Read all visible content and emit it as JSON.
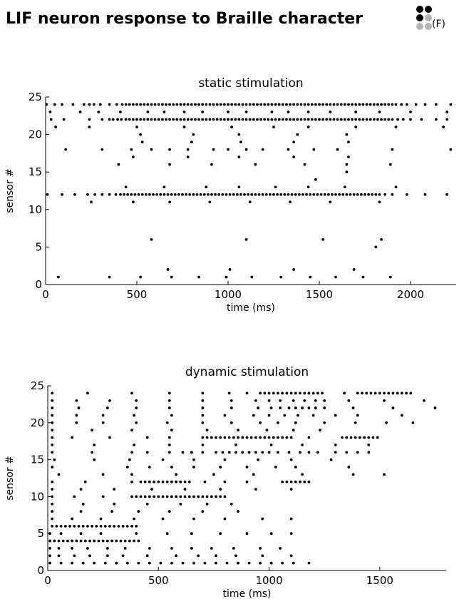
{
  "page_title": "LIF neuron response to Braille character",
  "braille_letter": "(F)",
  "braille_cell": {
    "active_color": "#000000",
    "inactive_color": "#b3b3b3",
    "active_dots": [
      1,
      2,
      4
    ]
  },
  "chart_data": [
    {
      "type": "scatter",
      "title": "static stimulation",
      "xlabel": "time (ms)",
      "ylabel": "sensor #",
      "xlim": [
        0,
        2250
      ],
      "ylim": [
        0,
        25
      ],
      "xticks": [
        0,
        500,
        1000,
        1500,
        2000
      ],
      "yticks": [
        0,
        5,
        10,
        15,
        20,
        25
      ],
      "grid": false,
      "marker_color": "#000000",
      "rows": [
        {
          "y": 24,
          "x": [
            5,
            50,
            90,
            150,
            210,
            240,
            265,
            300,
            350,
            390,
            420,
            440,
            460,
            480,
            500,
            520,
            540,
            560,
            580,
            600,
            620,
            640,
            660,
            680,
            700,
            720,
            740,
            760,
            780,
            800,
            820,
            840,
            860,
            880,
            900,
            920,
            940,
            960,
            980,
            1000,
            1020,
            1040,
            1060,
            1080,
            1100,
            1120,
            1140,
            1160,
            1180,
            1200,
            1220,
            1240,
            1260,
            1280,
            1300,
            1320,
            1340,
            1360,
            1380,
            1400,
            1420,
            1440,
            1460,
            1480,
            1500,
            1520,
            1540,
            1560,
            1580,
            1600,
            1620,
            1640,
            1660,
            1680,
            1700,
            1720,
            1740,
            1760,
            1780,
            1800,
            1820,
            1840,
            1860,
            1880,
            1900,
            1920,
            1950,
            1980,
            2030,
            2080,
            2140,
            2220
          ]
        },
        {
          "y": 23,
          "x": [
            25,
            190,
            290,
            410,
            560,
            650,
            760,
            860,
            1000,
            1100,
            1240,
            1330,
            1440,
            1560,
            1700,
            1830,
            2000,
            2200
          ]
        },
        {
          "y": 22,
          "x": [
            30,
            100,
            240,
            310,
            350,
            370,
            395,
            415,
            440,
            460,
            480,
            500,
            520,
            540,
            560,
            580,
            600,
            620,
            640,
            660,
            680,
            700,
            720,
            740,
            760,
            780,
            800,
            820,
            840,
            860,
            880,
            900,
            920,
            940,
            960,
            980,
            1000,
            1020,
            1040,
            1060,
            1080,
            1100,
            1120,
            1140,
            1160,
            1180,
            1200,
            1220,
            1240,
            1260,
            1280,
            1300,
            1320,
            1340,
            1360,
            1380,
            1400,
            1420,
            1440,
            1460,
            1480,
            1500,
            1520,
            1540,
            1560,
            1580,
            1600,
            1620,
            1640,
            1660,
            1680,
            1700,
            1720,
            1740,
            1760,
            1780,
            1800,
            1820,
            1840,
            1860,
            1880,
            1900,
            1930,
            1960,
            2000,
            2060,
            2140,
            2200
          ]
        },
        {
          "y": 21,
          "x": [
            55,
            240,
            500,
            760,
            1020,
            1250,
            1440,
            1700,
            1920,
            2180
          ]
        },
        {
          "y": 20,
          "x": [
            520,
            810,
            1060,
            1380,
            1650
          ]
        },
        {
          "y": 19,
          "x": [
            530,
            800,
            1070,
            1360,
            1660
          ]
        },
        {
          "y": 18,
          "x": [
            110,
            310,
            470,
            580,
            680,
            780,
            920,
            1000,
            1100,
            1190,
            1330,
            1470,
            1600,
            1900,
            2220
          ]
        },
        {
          "y": 17,
          "x": [
            480,
            780,
            1060,
            1360,
            1660
          ]
        },
        {
          "y": 16,
          "x": [
            400,
            680,
            910,
            1150,
            1420,
            1650,
            1890
          ]
        },
        {
          "y": 15,
          "x": [
            1650
          ]
        },
        {
          "y": 14,
          "x": [
            1480
          ]
        },
        {
          "y": 13,
          "x": [
            440,
            650,
            880,
            1060,
            1260,
            1440,
            1640,
            1920
          ]
        },
        {
          "y": 12,
          "x": [
            10,
            90,
            160,
            230,
            270,
            310,
            350,
            385,
            410,
            430,
            450,
            470,
            490,
            510,
            530,
            550,
            570,
            590,
            610,
            630,
            650,
            670,
            690,
            710,
            730,
            750,
            770,
            790,
            810,
            830,
            850,
            870,
            890,
            910,
            930,
            950,
            970,
            990,
            1010,
            1030,
            1050,
            1070,
            1090,
            1110,
            1130,
            1150,
            1170,
            1190,
            1210,
            1230,
            1250,
            1270,
            1290,
            1310,
            1330,
            1350,
            1370,
            1390,
            1410,
            1430,
            1450,
            1470,
            1490,
            1510,
            1530,
            1550,
            1570,
            1590,
            1610,
            1630,
            1650,
            1670,
            1690,
            1710,
            1730,
            1750,
            1770,
            1790,
            1810,
            1830,
            1860,
            1900,
            1980,
            2080,
            2200
          ]
        },
        {
          "y": 11,
          "x": [
            250,
            480,
            680,
            900,
            1120,
            1340,
            1560,
            1830
          ]
        },
        {
          "y": 6,
          "x": [
            580,
            1100,
            1520,
            1840
          ]
        },
        {
          "y": 5,
          "x": [
            1810
          ]
        },
        {
          "y": 2,
          "x": [
            670,
            1010,
            1360,
            1690
          ]
        },
        {
          "y": 1,
          "x": [
            70,
            350,
            520,
            690,
            840,
            990,
            1130,
            1290,
            1450,
            1590,
            1740,
            1890
          ]
        }
      ]
    },
    {
      "type": "scatter",
      "title": "dynamic stimulation",
      "xlabel": "time (ms)",
      "ylabel": "sensor #",
      "xlim": [
        0,
        1800
      ],
      "ylim": [
        0,
        25
      ],
      "xticks": [
        0,
        500,
        1000,
        1500
      ],
      "yticks": [
        0,
        5,
        10,
        15,
        20,
        25
      ],
      "grid": false,
      "marker_color": "#000000",
      "rows": [
        {
          "y": 24,
          "x": [
            20,
            180,
            380,
            550,
            700,
            820,
            900,
            960,
            980,
            1000,
            1020,
            1040,
            1060,
            1080,
            1100,
            1120,
            1140,
            1160,
            1180,
            1200,
            1220,
            1240,
            1340,
            1400,
            1420,
            1440,
            1460,
            1480,
            1500,
            1520,
            1540,
            1560,
            1580,
            1600,
            1620,
            1640
          ]
        },
        {
          "y": 23,
          "x": [
            20,
            130,
            280,
            400,
            550,
            700,
            830,
            940,
            1000,
            1050,
            1110,
            1160,
            1210,
            1250,
            1360,
            1520,
            1700
          ]
        },
        {
          "y": 22,
          "x": [
            20,
            140,
            270,
            400,
            550,
            700,
            830,
            950,
            1010,
            1050,
            1090,
            1120,
            1150,
            1180,
            1210,
            1250,
            1380,
            1560,
            1750
          ]
        },
        {
          "y": 21,
          "x": [
            20,
            130,
            250,
            390,
            560,
            700,
            800,
            930,
            1000,
            1070,
            1130,
            1200,
            1300,
            1400,
            1600
          ]
        },
        {
          "y": 20,
          "x": [
            20,
            130,
            250,
            400,
            540,
            700,
            830,
            960,
            1040,
            1120,
            1250,
            1390,
            1530,
            1650
          ]
        },
        {
          "y": 19,
          "x": [
            20,
            200,
            380,
            560,
            720,
            860,
            990,
            1110,
            1230
          ]
        },
        {
          "y": 18,
          "x": [
            20,
            110,
            280,
            450,
            550,
            700,
            720,
            740,
            760,
            780,
            800,
            820,
            840,
            860,
            880,
            900,
            920,
            940,
            960,
            980,
            1000,
            1020,
            1040,
            1060,
            1080,
            1100,
            1180,
            1330,
            1350,
            1370,
            1390,
            1410,
            1430,
            1450,
            1470,
            1490
          ]
        },
        {
          "y": 17,
          "x": [
            20,
            210,
            390,
            550,
            700,
            850,
            1010,
            1150,
            1300,
            1450
          ]
        },
        {
          "y": 16,
          "x": [
            20,
            200,
            380,
            450,
            550,
            610,
            650,
            700,
            760,
            790,
            820,
            850,
            880,
            910,
            940,
            970,
            1000,
            1040,
            1090,
            1140,
            1180,
            1220,
            1300,
            1350,
            1400,
            1450
          ]
        },
        {
          "y": 15,
          "x": [
            30,
            210,
            370,
            520,
            660,
            800,
            950,
            1100,
            1280
          ]
        },
        {
          "y": 14,
          "x": [
            20,
            360,
            460,
            560,
            660,
            780,
            900,
            1030,
            1120,
            1360
          ]
        },
        {
          "y": 13,
          "x": [
            50,
            250,
            380,
            580,
            750,
            930,
            1150,
            1380,
            1520
          ]
        },
        {
          "y": 12,
          "x": [
            20,
            170,
            380,
            420,
            440,
            460,
            480,
            500,
            520,
            540,
            560,
            580,
            600,
            620,
            640,
            710,
            800,
            900,
            1060,
            1080,
            1100,
            1120,
            1140,
            1160,
            1180
          ]
        },
        {
          "y": 11,
          "x": [
            20,
            150,
            300,
            470,
            620,
            780,
            940,
            1100
          ]
        },
        {
          "y": 10,
          "x": [
            20,
            120,
            250,
            380,
            400,
            420,
            440,
            460,
            480,
            500,
            520,
            540,
            560,
            580,
            600,
            620,
            640,
            660,
            680,
            700,
            720,
            740,
            760,
            780,
            800
          ]
        },
        {
          "y": 9,
          "x": [
            20,
            160,
            300,
            450,
            600,
            720,
            830
          ]
        },
        {
          "y": 8,
          "x": [
            20,
            150,
            290,
            410,
            550,
            700,
            860
          ]
        },
        {
          "y": 7,
          "x": [
            20,
            110,
            240,
            390,
            520,
            660,
            800,
            970,
            1100
          ]
        },
        {
          "y": 6,
          "x": [
            20,
            40,
            60,
            80,
            100,
            120,
            140,
            160,
            180,
            200,
            220,
            240,
            260,
            280,
            300,
            320,
            340,
            360,
            380,
            400
          ]
        },
        {
          "y": 5,
          "x": [
            10,
            60,
            150,
            240,
            400,
            540,
            650,
            780,
            900,
            1010,
            1100
          ]
        },
        {
          "y": 4,
          "x": [
            10,
            30,
            50,
            70,
            90,
            110,
            130,
            150,
            170,
            190,
            210,
            230,
            250,
            270,
            290,
            310,
            330,
            350,
            370,
            390,
            410
          ]
        },
        {
          "y": 3,
          "x": [
            10,
            50,
            110,
            180,
            270,
            350,
            460,
            560,
            650,
            740,
            840,
            960,
            1050
          ]
        },
        {
          "y": 2,
          "x": [
            10,
            50,
            120,
            190,
            270,
            340,
            450,
            580,
            680,
            760,
            850,
            970,
            1100
          ]
        },
        {
          "y": 1,
          "x": [
            10,
            60,
            110,
            160,
            210,
            260,
            310,
            360,
            410,
            460,
            510,
            560,
            610,
            660,
            710,
            760,
            810,
            860,
            910,
            960,
            1010,
            1060,
            1110,
            1180
          ]
        }
      ]
    }
  ]
}
